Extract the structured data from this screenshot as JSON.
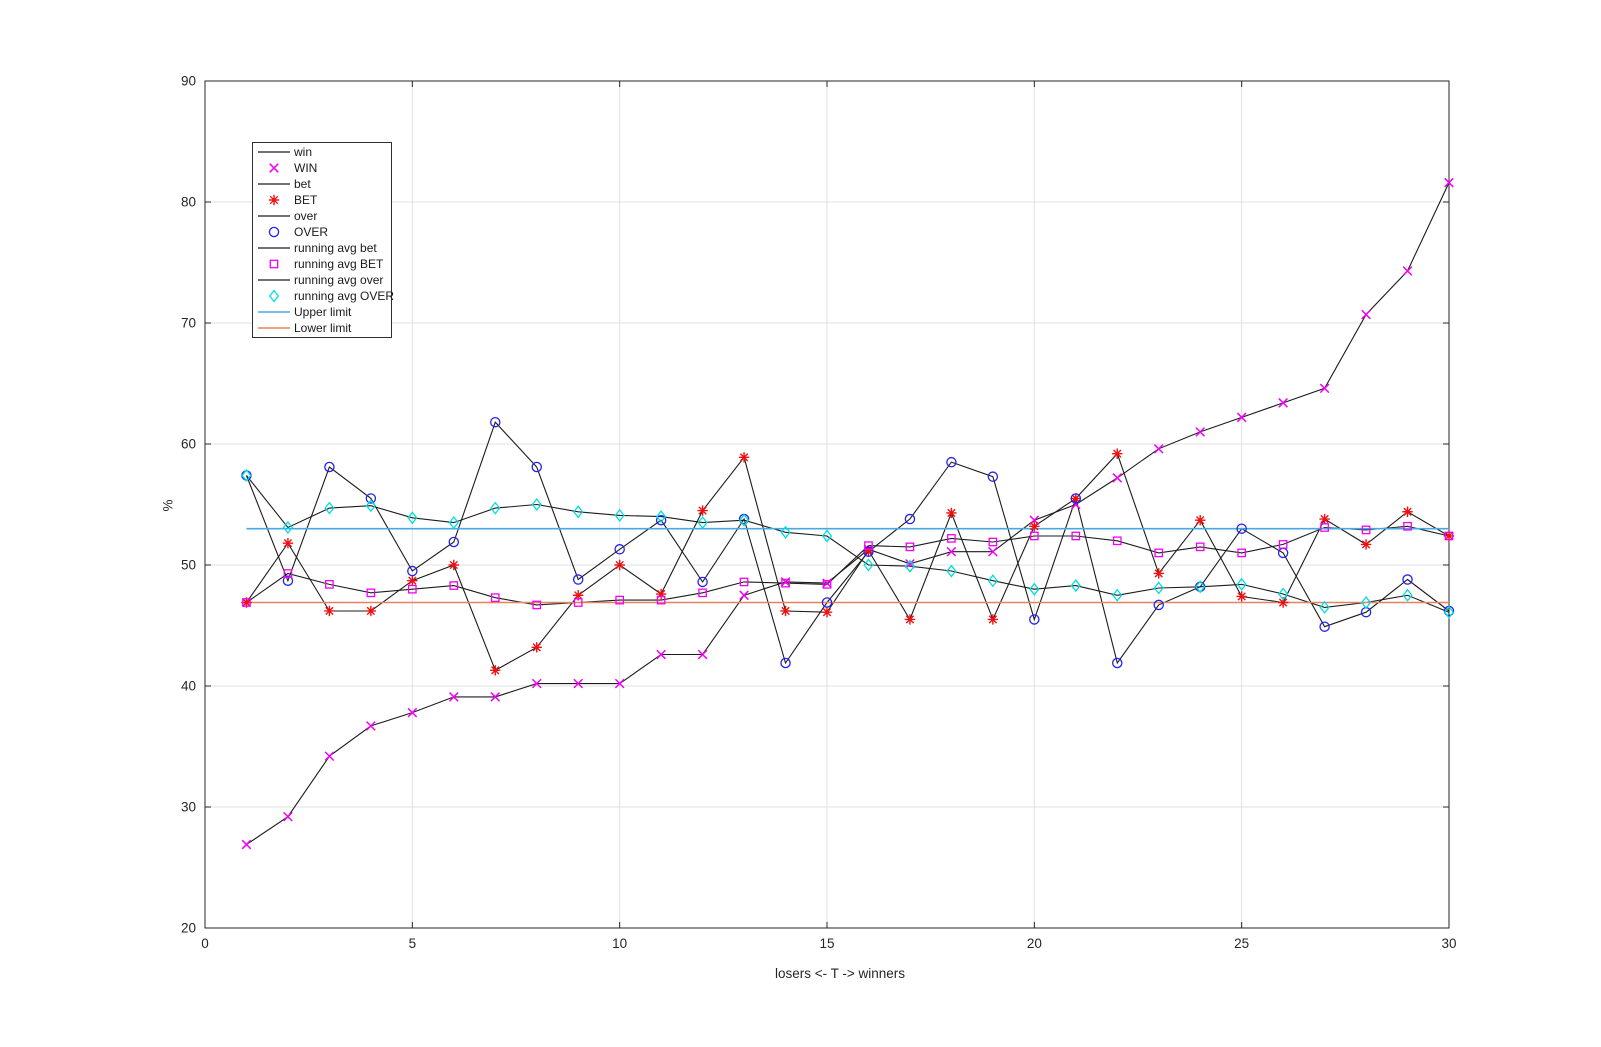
{
  "figure": {
    "background": "#ffffff",
    "xlabel": "losers <- T -> winners",
    "ylabel": "%"
  },
  "chart_data": {
    "type": "line",
    "title": "",
    "xlabel": "losers <- T -> winners",
    "ylabel": "%",
    "xlim": [
      0,
      30
    ],
    "ylim": [
      20,
      90
    ],
    "xticks": [
      "0",
      "5",
      "10",
      "15",
      "20",
      "25",
      "30"
    ],
    "yticks": [
      "20",
      "30",
      "40",
      "50",
      "60",
      "70",
      "80",
      "90"
    ],
    "grid": true,
    "legend_position": "top-left",
    "x": [
      1,
      2,
      3,
      4,
      5,
      6,
      7,
      8,
      9,
      10,
      11,
      12,
      13,
      14,
      15,
      16,
      17,
      18,
      19,
      20,
      21,
      22,
      23,
      24,
      25,
      26,
      27,
      28,
      29,
      30
    ],
    "values": {
      "win": [
        26.9,
        29.2,
        34.2,
        36.7,
        37.8,
        39.1,
        39.1,
        40.2,
        40.2,
        40.2,
        42.6,
        42.6,
        47.5,
        48.6,
        48.5,
        51.3,
        50.1,
        51.1,
        51.1,
        53.7,
        55.0,
        57.2,
        59.6,
        61.0,
        62.2,
        63.4,
        64.6,
        70.7,
        74.3,
        81.6
      ],
      "bet": [
        46.9,
        51.8,
        46.2,
        46.2,
        48.7,
        50.0,
        41.3,
        43.2,
        47.5,
        50.0,
        47.6,
        54.5,
        58.9,
        46.2,
        46.1,
        51.2,
        45.5,
        54.3,
        45.5,
        53.2,
        55.5,
        59.2,
        49.3,
        53.7,
        47.4,
        46.9,
        53.8,
        51.7,
        54.4,
        52.4
      ],
      "over": [
        57.4,
        48.7,
        58.1,
        55.5,
        49.5,
        51.9,
        61.8,
        58.1,
        48.8,
        51.3,
        53.7,
        48.6,
        53.8,
        41.9,
        46.9,
        51.1,
        53.8,
        58.5,
        57.3,
        45.5,
        55.5,
        41.9,
        46.7,
        48.2,
        53.0,
        51.0,
        44.9,
        46.1,
        48.8,
        46.2
      ],
      "ravg_bet": [
        46.9,
        49.3,
        48.4,
        47.7,
        48.0,
        48.3,
        47.3,
        46.7,
        46.9,
        47.1,
        47.1,
        47.7,
        48.6,
        48.5,
        48.4,
        51.6,
        51.5,
        52.2,
        51.9,
        52.4,
        52.4,
        52.0,
        51.0,
        51.5,
        51.0,
        51.7,
        53.1,
        52.9,
        53.2,
        52.4
      ],
      "ravg_over": [
        57.4,
        53.1,
        54.7,
        54.9,
        53.9,
        53.5,
        54.7,
        55.0,
        54.4,
        54.1,
        54.0,
        53.5,
        53.7,
        52.7,
        52.4,
        50.0,
        49.9,
        49.5,
        48.7,
        48.0,
        48.3,
        47.5,
        48.1,
        48.2,
        48.4,
        47.6,
        46.5,
        46.9,
        47.5,
        46.1
      ],
      "upper": 53.0,
      "lower": 46.9
    },
    "series": [
      {
        "name": "win",
        "kind": "line",
        "marker": "none",
        "color": "#1c1c1c",
        "data": "win"
      },
      {
        "name": "WIN",
        "kind": "marker",
        "marker": "x",
        "color": "#f400f4",
        "data": "win"
      },
      {
        "name": "bet",
        "kind": "line",
        "marker": "none",
        "color": "#1c1c1c",
        "data": "bet"
      },
      {
        "name": "BET",
        "kind": "marker",
        "marker": "asterisk",
        "color": "#ee1111",
        "data": "bet"
      },
      {
        "name": "over",
        "kind": "line",
        "marker": "none",
        "color": "#1c1c1c",
        "data": "over"
      },
      {
        "name": "OVER",
        "kind": "marker",
        "marker": "circle",
        "color": "#2222ee",
        "data": "over"
      },
      {
        "name": "running avg bet",
        "kind": "line",
        "marker": "none",
        "color": "#1c1c1c",
        "data": "ravg_bet"
      },
      {
        "name": "running avg BET",
        "kind": "marker",
        "marker": "square",
        "color": "#f400f4",
        "data": "ravg_bet"
      },
      {
        "name": "running avg over",
        "kind": "line",
        "marker": "none",
        "color": "#1c1c1c",
        "data": "ravg_over"
      },
      {
        "name": "running avg OVER",
        "kind": "marker",
        "marker": "diamond",
        "color": "#00dede",
        "data": "ravg_over"
      },
      {
        "name": "Upper limit",
        "kind": "line",
        "marker": "none",
        "color": "#46aadf",
        "data": "upper"
      },
      {
        "name": "Lower limit",
        "kind": "line",
        "marker": "none",
        "color": "#e8825c",
        "data": "lower"
      }
    ],
    "colors": {
      "grid": "#e0e0e0",
      "axis": "#262626",
      "tick_text": "#262626"
    }
  }
}
